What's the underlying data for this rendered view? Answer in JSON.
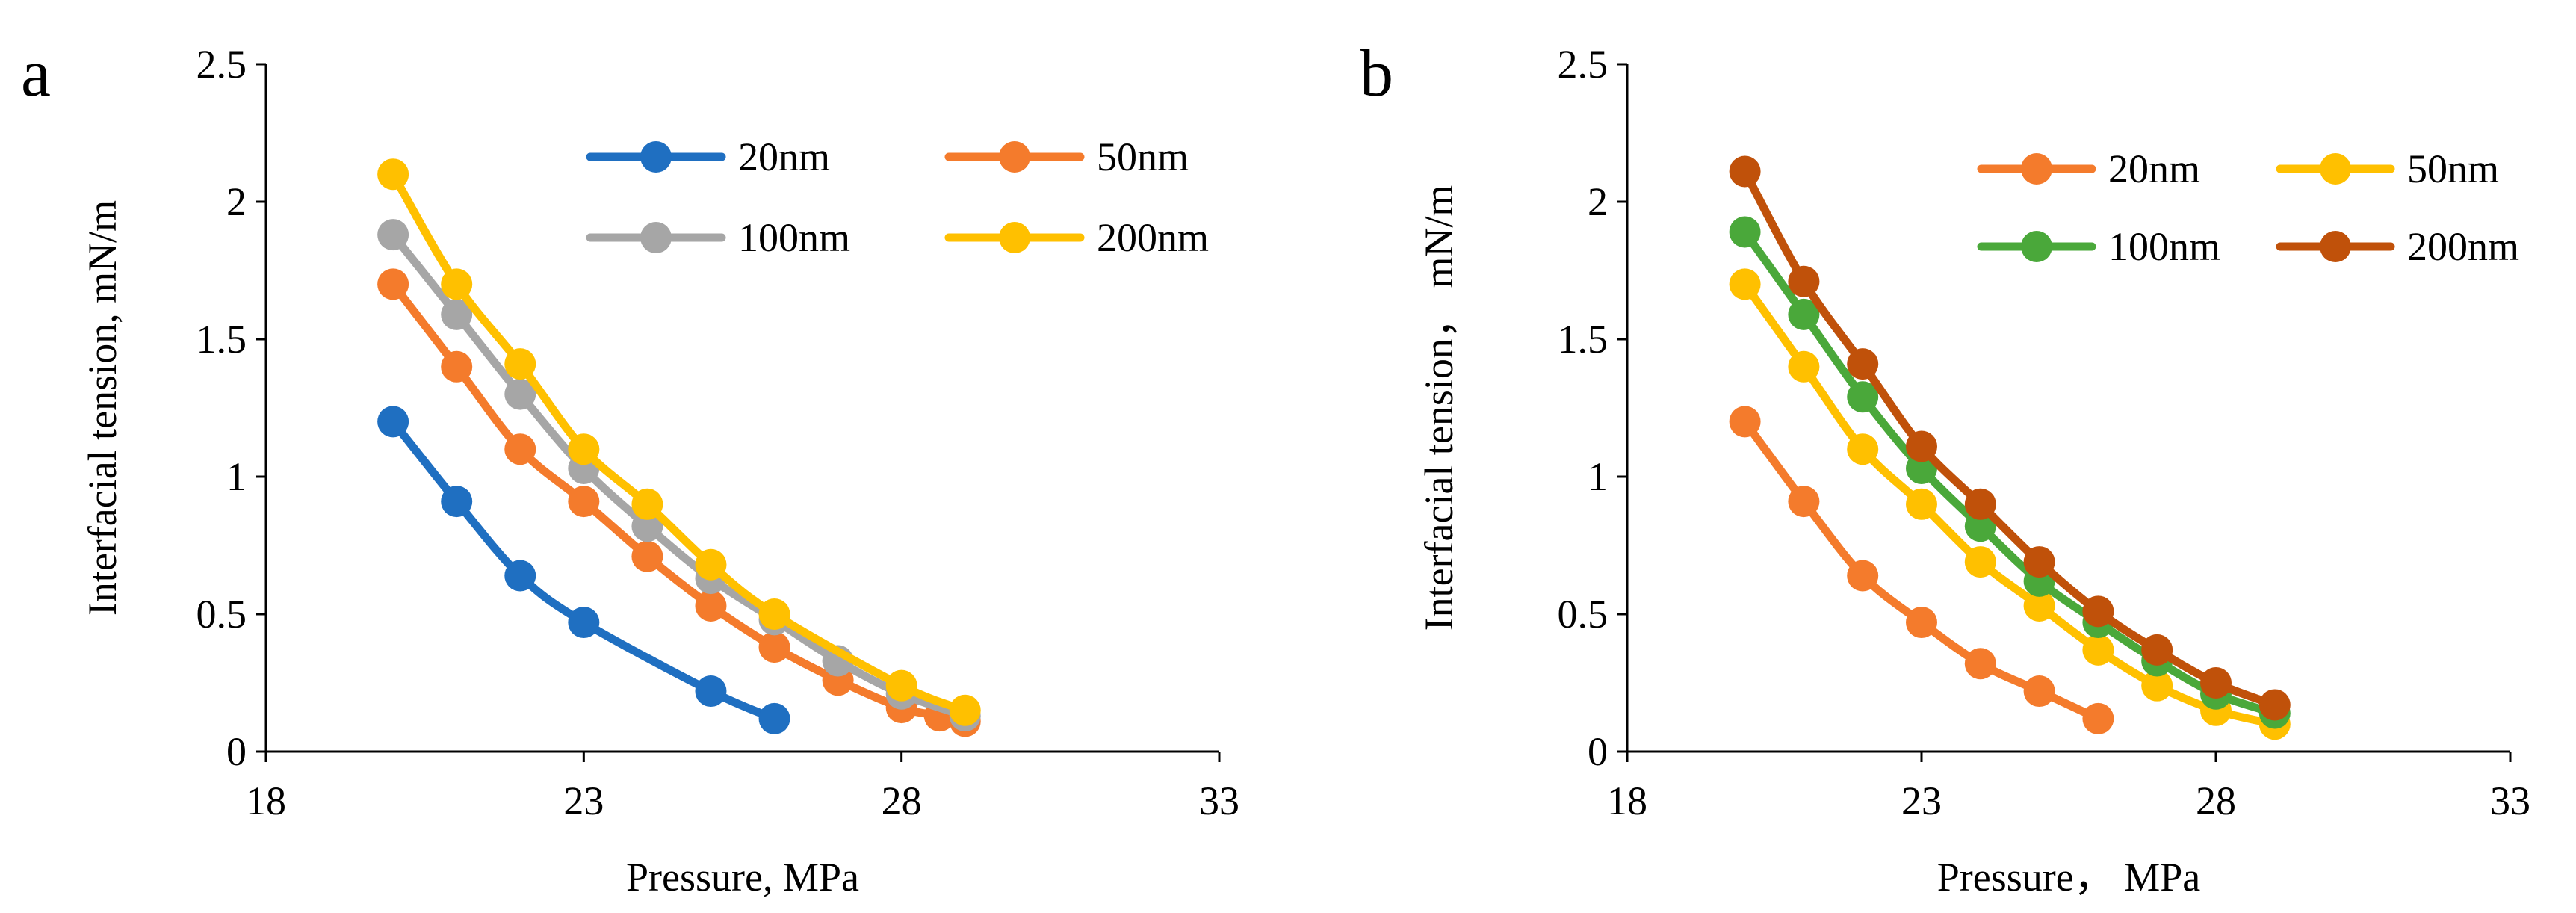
{
  "chart_data": [
    {
      "type": "line",
      "panel_label": "a",
      "xlabel": "Pressure, MPa",
      "ylabel": "Interfacial tension, mN/m",
      "xlim": [
        18,
        33
      ],
      "ylim": [
        0,
        2.5
      ],
      "x_ticks": [
        "18",
        "23",
        "28",
        "33"
      ],
      "y_ticks": [
        "0",
        "0.5",
        "1",
        "1.5",
        "2",
        "2.5"
      ],
      "legend_columns": 2,
      "series": [
        {
          "name": "20nm",
          "color": "#1f6fc1",
          "x": [
            20,
            21,
            22,
            23,
            25,
            26
          ],
          "y": [
            1.2,
            0.91,
            0.64,
            0.47,
            0.22,
            0.12
          ]
        },
        {
          "name": "50nm",
          "color": "#f47b2c",
          "x": [
            20,
            21,
            22,
            23,
            24,
            25,
            26,
            27,
            28,
            28.6,
            29
          ],
          "y": [
            1.7,
            1.4,
            1.1,
            0.91,
            0.71,
            0.53,
            0.38,
            0.26,
            0.16,
            0.13,
            0.11
          ]
        },
        {
          "name": "100nm",
          "color": "#a6a6a6",
          "x": [
            20,
            21,
            22,
            23,
            24,
            25,
            26,
            27,
            28,
            29
          ],
          "y": [
            1.88,
            1.59,
            1.3,
            1.03,
            0.82,
            0.63,
            0.48,
            0.33,
            0.21,
            0.13
          ]
        },
        {
          "name": "200nm",
          "color": "#ffc000",
          "x": [
            20,
            21,
            22,
            23,
            24,
            25,
            26,
            28,
            29
          ],
          "y": [
            2.1,
            1.7,
            1.41,
            1.1,
            0.9,
            0.68,
            0.5,
            0.24,
            0.15
          ]
        }
      ]
    },
    {
      "type": "line",
      "panel_label": "b",
      "xlabel": "Pressure， MPa",
      "ylabel": "Interfacial tension， mN/m",
      "xlim": [
        18,
        33
      ],
      "ylim": [
        0,
        2.5
      ],
      "x_ticks": [
        "18",
        "23",
        "28",
        "33"
      ],
      "y_ticks": [
        "0",
        "0.5",
        "1",
        "1.5",
        "2",
        "2.5"
      ],
      "legend_columns": 2,
      "series": [
        {
          "name": "20nm",
          "color": "#f47b2c",
          "x": [
            20,
            21,
            22,
            23,
            24,
            25,
            26
          ],
          "y": [
            1.2,
            0.91,
            0.64,
            0.47,
            0.32,
            0.22,
            0.12
          ]
        },
        {
          "name": "50nm",
          "color": "#ffc000",
          "x": [
            20,
            21,
            22,
            23,
            24,
            25,
            26,
            27,
            28,
            29
          ],
          "y": [
            1.7,
            1.4,
            1.1,
            0.9,
            0.69,
            0.53,
            0.37,
            0.24,
            0.15,
            0.1
          ]
        },
        {
          "name": "100nm",
          "color": "#4aa83a",
          "x": [
            20,
            21,
            22,
            23,
            24,
            25,
            26,
            27,
            28,
            29
          ],
          "y": [
            1.89,
            1.59,
            1.29,
            1.03,
            0.82,
            0.62,
            0.47,
            0.33,
            0.21,
            0.14
          ]
        },
        {
          "name": "200nm",
          "color": "#c0510a",
          "x": [
            20,
            21,
            22,
            23,
            24,
            25,
            26,
            27,
            28,
            29
          ],
          "y": [
            2.11,
            1.71,
            1.41,
            1.11,
            0.9,
            0.69,
            0.51,
            0.37,
            0.25,
            0.17
          ]
        }
      ]
    }
  ]
}
